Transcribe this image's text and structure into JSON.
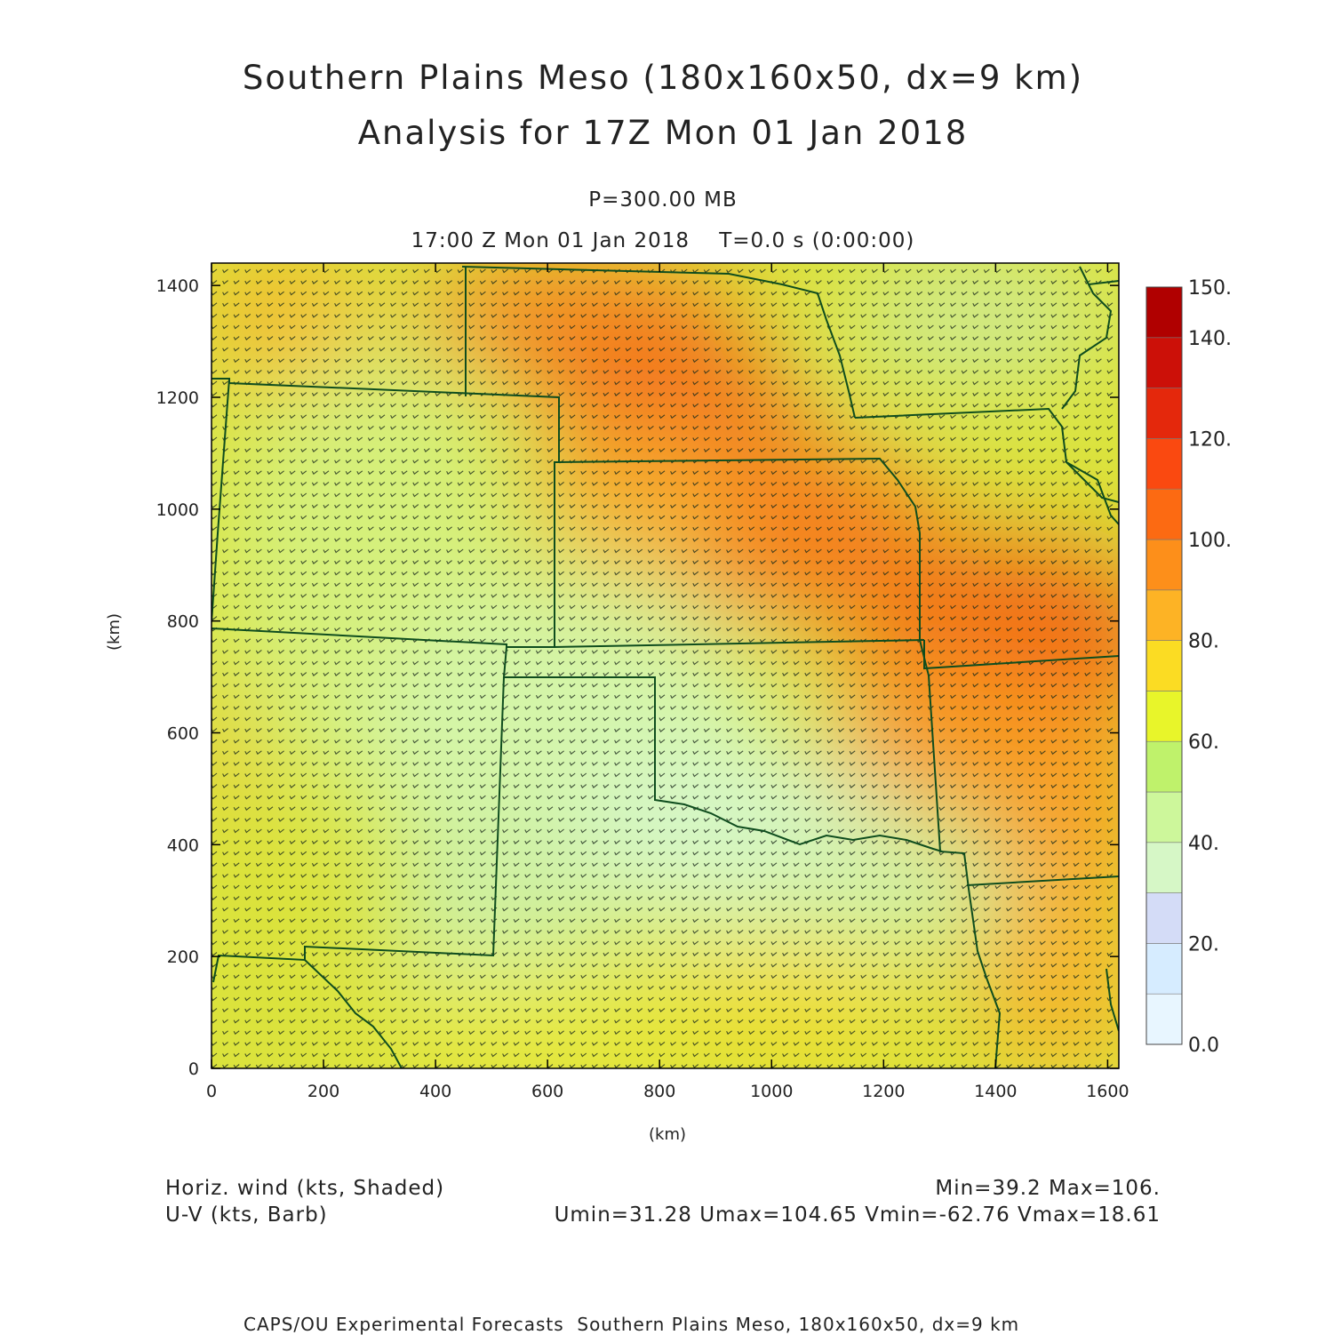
{
  "title_line1": "Southern Plains Meso (180x160x50, dx=9 km)",
  "title_line2": "Analysis for 17Z Mon 01 Jan 2018",
  "level_label": "P=300.00 MB",
  "time_label": "17:00 Z Mon 01 Jan 2018    T=0.0 s (0:00:00)",
  "x_axis": {
    "label": "(km)",
    "range": [
      0,
      1620
    ],
    "ticks": [
      "0",
      "200",
      "400",
      "600",
      "800",
      "1000",
      "1200",
      "1400",
      "1600"
    ]
  },
  "y_axis": {
    "label": "(km)",
    "range": [
      0,
      1440
    ],
    "ticks": [
      "0",
      "200",
      "400",
      "600",
      "800",
      "1000",
      "1200",
      "1400"
    ]
  },
  "colorbar": {
    "labels": [
      "0.0",
      "20.",
      "40.",
      "60.",
      "80.",
      "100.",
      "120.",
      "140.",
      "150."
    ],
    "colors": [
      "#e8f6ff",
      "#d6ecff",
      "#d4dcf7",
      "#d6f7c6",
      "#cdf79b",
      "#bff26b",
      "#e8f52a",
      "#fbdc23",
      "#fdb325",
      "#fd8f1a",
      "#fc6a12",
      "#fa4910",
      "#e4280c",
      "#cc1008",
      "#b00000"
    ]
  },
  "footer": {
    "field1": "Horiz. wind (kts, Shaded)",
    "field2": "U-V (kts, Barb)",
    "stats1": "Min=39.2 Max=106.",
    "stats2": "Umin=31.28 Umax=104.65 Vmin=-62.76 Vmax=18.61"
  },
  "credit": "CAPS/OU Experimental Forecasts  Southern Plains Meso, 180x160x50, dx=9 km",
  "colors": {
    "border": "#0f4d1e",
    "barb": "#1a2a1a",
    "frame": "#000000"
  }
}
